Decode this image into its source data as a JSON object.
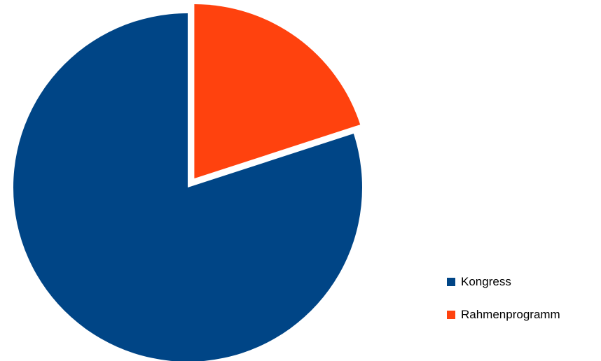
{
  "chart_data": {
    "type": "pie",
    "title": "",
    "slices": [
      {
        "label": "Kongress",
        "value": 80,
        "color": "#004586",
        "exploded": false
      },
      {
        "label": "Rahmenprogramm",
        "value": 20,
        "color": "#ff420e",
        "exploded": true
      }
    ],
    "start_angle_deg": 0,
    "direction": "clockwise",
    "legend": {
      "position": "right-bottom",
      "entries": [
        "Kongress",
        "Rahmenprogramm"
      ]
    }
  },
  "legend": {
    "items": [
      {
        "label": "Kongress",
        "color": "#004586"
      },
      {
        "label": "Rahmenprogramm",
        "color": "#ff420e"
      }
    ]
  }
}
